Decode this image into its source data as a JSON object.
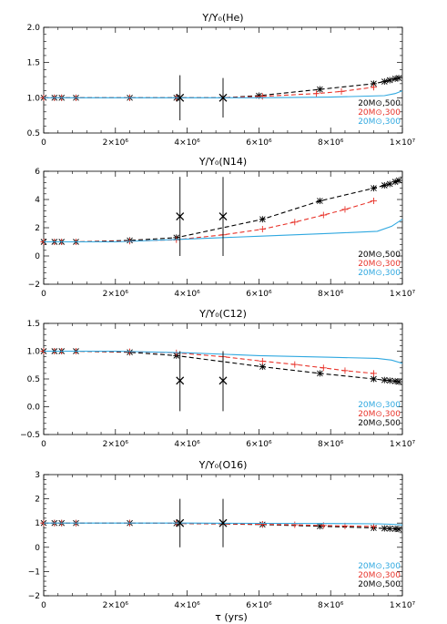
{
  "figure": {
    "xlabel": "τ (yrs)",
    "x_ticks": [
      {
        "value": 0,
        "label": "0"
      },
      {
        "value": 2000000,
        "label": "2×10⁶"
      },
      {
        "value": 4000000,
        "label": "4×10⁶"
      },
      {
        "value": 6000000,
        "label": "6×10⁶"
      },
      {
        "value": 8000000,
        "label": "8×10⁶"
      },
      {
        "value": 10000000,
        "label": "1×10⁷"
      }
    ]
  },
  "colors": {
    "black": "#000000",
    "red": "#e8332a",
    "blue": "#2fa8e0"
  },
  "chart_data": [
    {
      "type": "line",
      "title": "Y/Y₀(He)",
      "xlim": [
        0,
        10000000
      ],
      "ylim": [
        0.5,
        2.0
      ],
      "y_ticks": [
        {
          "value": 0.5,
          "label": "0.5"
        },
        {
          "value": 1.0,
          "label": "1.0"
        },
        {
          "value": 1.5,
          "label": "1.5"
        },
        {
          "value": 2.0,
          "label": "2.0"
        }
      ],
      "legend": {
        "placement": "lower-right",
        "entries": [
          {
            "text": "20M⊙,500",
            "color": "#000000"
          },
          {
            "text": "20M⊙,300",
            "color": "#e8332a"
          },
          {
            "text": "20M⊙,300",
            "color": "#2fa8e0"
          }
        ]
      },
      "series": [
        {
          "color": "#000000",
          "style": "dashed",
          "markers": true,
          "x": [
            0,
            300000,
            500000,
            900000,
            2400000,
            3700000,
            5000000,
            6000000,
            7700000,
            9200000,
            9500000,
            9650000,
            9800000,
            9900000
          ],
          "y": [
            1.0,
            1.0,
            1.0,
            1.0,
            1.0,
            1.0,
            1.0,
            1.03,
            1.12,
            1.2,
            1.23,
            1.25,
            1.27,
            1.28
          ]
        },
        {
          "color": "#e8332a",
          "style": "dashed",
          "markers": true,
          "x": [
            0,
            300000,
            500000,
            900000,
            2400000,
            3700000,
            5000000,
            6100000,
            7600000,
            8300000,
            9200000
          ],
          "y": [
            1.0,
            1.0,
            1.0,
            1.0,
            1.0,
            1.0,
            1.0,
            1.02,
            1.06,
            1.09,
            1.15
          ]
        },
        {
          "color": "#2fa8e0",
          "style": "solid",
          "markers": false,
          "x": [
            0,
            2000000,
            4000000,
            6000000,
            8000000,
            9500000,
            9800000,
            10000000
          ],
          "y": [
            1.0,
            1.0,
            1.0,
            1.0,
            1.01,
            1.03,
            1.06,
            1.1
          ]
        }
      ],
      "observations": [
        {
          "x": 3800000,
          "y": 1.0,
          "ylow": 0.68,
          "yhigh": 1.32
        },
        {
          "x": 5000000,
          "y": 1.0,
          "ylow": 0.72,
          "yhigh": 1.28
        }
      ]
    },
    {
      "type": "line",
      "title": "Y/Y₀(N14)",
      "xlim": [
        0,
        10000000
      ],
      "ylim": [
        -2,
        6
      ],
      "y_ticks": [
        {
          "value": -2,
          "label": "−2"
        },
        {
          "value": 0,
          "label": "0"
        },
        {
          "value": 2,
          "label": "2"
        },
        {
          "value": 4,
          "label": "4"
        },
        {
          "value": 6,
          "label": "6"
        }
      ],
      "legend": {
        "placement": "lower-right",
        "entries": [
          {
            "text": "20M⊙,500",
            "color": "#000000"
          },
          {
            "text": "20M⊙,300",
            "color": "#e8332a"
          },
          {
            "text": "20M⊙,300",
            "color": "#2fa8e0"
          }
        ]
      },
      "series": [
        {
          "color": "#000000",
          "style": "dashed",
          "markers": true,
          "x": [
            0,
            300000,
            500000,
            900000,
            2400000,
            3700000,
            6100000,
            7700000,
            9200000,
            9500000,
            9650000,
            9800000,
            9900000
          ],
          "y": [
            1.0,
            1.0,
            1.0,
            1.0,
            1.1,
            1.3,
            2.6,
            3.9,
            4.8,
            5.0,
            5.1,
            5.25,
            5.35
          ]
        },
        {
          "color": "#e8332a",
          "style": "dashed",
          "markers": true,
          "x": [
            0,
            300000,
            500000,
            900000,
            2400000,
            3700000,
            5000000,
            6100000,
            7000000,
            7800000,
            8400000,
            9200000
          ],
          "y": [
            1.0,
            1.0,
            1.0,
            1.0,
            1.05,
            1.15,
            1.5,
            1.9,
            2.4,
            2.9,
            3.3,
            3.9
          ]
        },
        {
          "color": "#2fa8e0",
          "style": "solid",
          "markers": false,
          "x": [
            0,
            2000000,
            4000000,
            6000000,
            8000000,
            9300000,
            9700000,
            10000000
          ],
          "y": [
            1.0,
            1.0,
            1.2,
            1.4,
            1.6,
            1.75,
            2.1,
            2.6
          ]
        }
      ],
      "observations": [
        {
          "x": 3800000,
          "y": 2.8,
          "ylow": 0.0,
          "yhigh": 5.6
        },
        {
          "x": 5000000,
          "y": 2.8,
          "ylow": 0.0,
          "yhigh": 5.6
        }
      ]
    },
    {
      "type": "line",
      "title": "Y/Y₀(C12)",
      "xlim": [
        0,
        10000000
      ],
      "ylim": [
        -0.5,
        1.5
      ],
      "y_ticks": [
        {
          "value": -0.5,
          "label": "−0.5"
        },
        {
          "value": 0.0,
          "label": "0.0"
        },
        {
          "value": 0.5,
          "label": "0.5"
        },
        {
          "value": 1.0,
          "label": "1.0"
        },
        {
          "value": 1.5,
          "label": "1.5"
        }
      ],
      "legend": {
        "placement": "lower-right",
        "entries": [
          {
            "text": "20M⊙,300",
            "color": "#2fa8e0"
          },
          {
            "text": "20M⊙,300",
            "color": "#e8332a"
          },
          {
            "text": "20M⊙,500",
            "color": "#000000"
          }
        ]
      },
      "series": [
        {
          "color": "#000000",
          "style": "dashed",
          "markers": true,
          "x": [
            0,
            300000,
            500000,
            900000,
            2400000,
            3700000,
            6100000,
            7700000,
            9200000,
            9500000,
            9650000,
            9800000,
            9900000
          ],
          "y": [
            1.0,
            1.0,
            1.0,
            1.0,
            0.98,
            0.92,
            0.72,
            0.6,
            0.5,
            0.48,
            0.47,
            0.46,
            0.45
          ]
        },
        {
          "color": "#e8332a",
          "style": "dashed",
          "markers": true,
          "x": [
            0,
            300000,
            500000,
            900000,
            2400000,
            3700000,
            5000000,
            6100000,
            7000000,
            7800000,
            8400000,
            9200000
          ],
          "y": [
            1.0,
            1.0,
            1.0,
            1.0,
            0.99,
            0.97,
            0.9,
            0.82,
            0.76,
            0.7,
            0.65,
            0.6
          ]
        },
        {
          "color": "#2fa8e0",
          "style": "solid",
          "markers": false,
          "x": [
            0,
            2000000,
            4000000,
            6000000,
            8000000,
            9300000,
            9700000,
            10000000
          ],
          "y": [
            1.0,
            1.0,
            0.97,
            0.92,
            0.89,
            0.87,
            0.84,
            0.78
          ]
        }
      ],
      "observations": [
        {
          "x": 3800000,
          "y": 0.47,
          "ylow": -0.08,
          "yhigh": 1.0
        },
        {
          "x": 5000000,
          "y": 0.47,
          "ylow": -0.08,
          "yhigh": 1.0
        }
      ]
    },
    {
      "type": "line",
      "title": "Y/Y₀(O16)",
      "xlim": [
        0,
        10000000
      ],
      "ylim": [
        -2,
        3
      ],
      "y_ticks": [
        {
          "value": -2,
          "label": "−2"
        },
        {
          "value": -1,
          "label": "−1"
        },
        {
          "value": 0,
          "label": "0"
        },
        {
          "value": 1,
          "label": "1"
        },
        {
          "value": 2,
          "label": "2"
        },
        {
          "value": 3,
          "label": "3"
        }
      ],
      "legend": {
        "placement": "lower-right",
        "entries": [
          {
            "text": "20M⊙,300",
            "color": "#2fa8e0"
          },
          {
            "text": "20M⊙,300",
            "color": "#e8332a"
          },
          {
            "text": "20M⊙,500",
            "color": "#000000"
          }
        ]
      },
      "series": [
        {
          "color": "#000000",
          "style": "dashed",
          "markers": true,
          "x": [
            0,
            300000,
            500000,
            900000,
            2400000,
            3700000,
            6100000,
            7700000,
            9200000,
            9500000,
            9650000,
            9800000,
            9900000
          ],
          "y": [
            1.0,
            1.0,
            1.0,
            1.0,
            1.0,
            0.99,
            0.94,
            0.87,
            0.8,
            0.78,
            0.77,
            0.76,
            0.75
          ]
        },
        {
          "color": "#e8332a",
          "style": "dashed",
          "markers": true,
          "x": [
            0,
            300000,
            500000,
            900000,
            2400000,
            3700000,
            5000000,
            6100000,
            7000000,
            7800000,
            8400000,
            9200000
          ],
          "y": [
            1.0,
            1.0,
            1.0,
            1.0,
            1.0,
            0.99,
            0.97,
            0.95,
            0.93,
            0.9,
            0.88,
            0.86
          ]
        },
        {
          "color": "#2fa8e0",
          "style": "solid",
          "markers": false,
          "x": [
            0,
            2000000,
            4000000,
            6000000,
            8000000,
            9300000,
            9700000,
            10000000
          ],
          "y": [
            1.0,
            1.0,
            1.0,
            0.99,
            0.98,
            0.97,
            0.95,
            0.92
          ]
        }
      ],
      "observations": [
        {
          "x": 3800000,
          "y": 1.0,
          "ylow": 0.0,
          "yhigh": 2.0
        },
        {
          "x": 5000000,
          "y": 1.0,
          "ylow": 0.0,
          "yhigh": 2.0
        }
      ]
    }
  ]
}
